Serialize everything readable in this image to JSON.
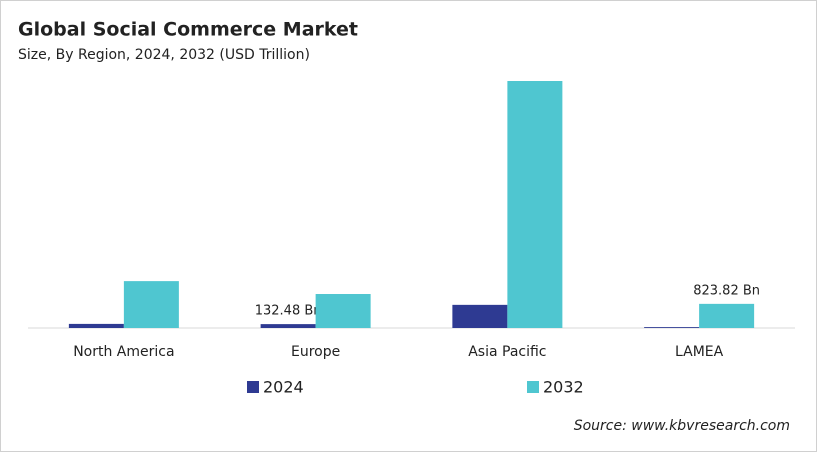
{
  "chart_data": {
    "type": "bar",
    "title": "Global Social Commerce Market",
    "subtitle": "Size, By Region, 2024, 2032 (USD Trillion)",
    "categories": [
      "North America",
      "Europe",
      "Asia Pacific",
      "LAMEA"
    ],
    "series": [
      {
        "name": "2024",
        "color": "#2e3a92",
        "values": [
          0.14,
          0.13248,
          0.79,
          0.03
        ],
        "value_labels": [
          null,
          "132.48 Bn",
          null,
          null
        ]
      },
      {
        "name": "2032",
        "color": "#4fc6d0",
        "values": [
          1.6,
          1.16,
          8.43,
          0.82382
        ],
        "value_labels": [
          null,
          null,
          null,
          "823.82 Bn"
        ]
      }
    ],
    "source": "Source: www.kbvresearch.com"
  }
}
